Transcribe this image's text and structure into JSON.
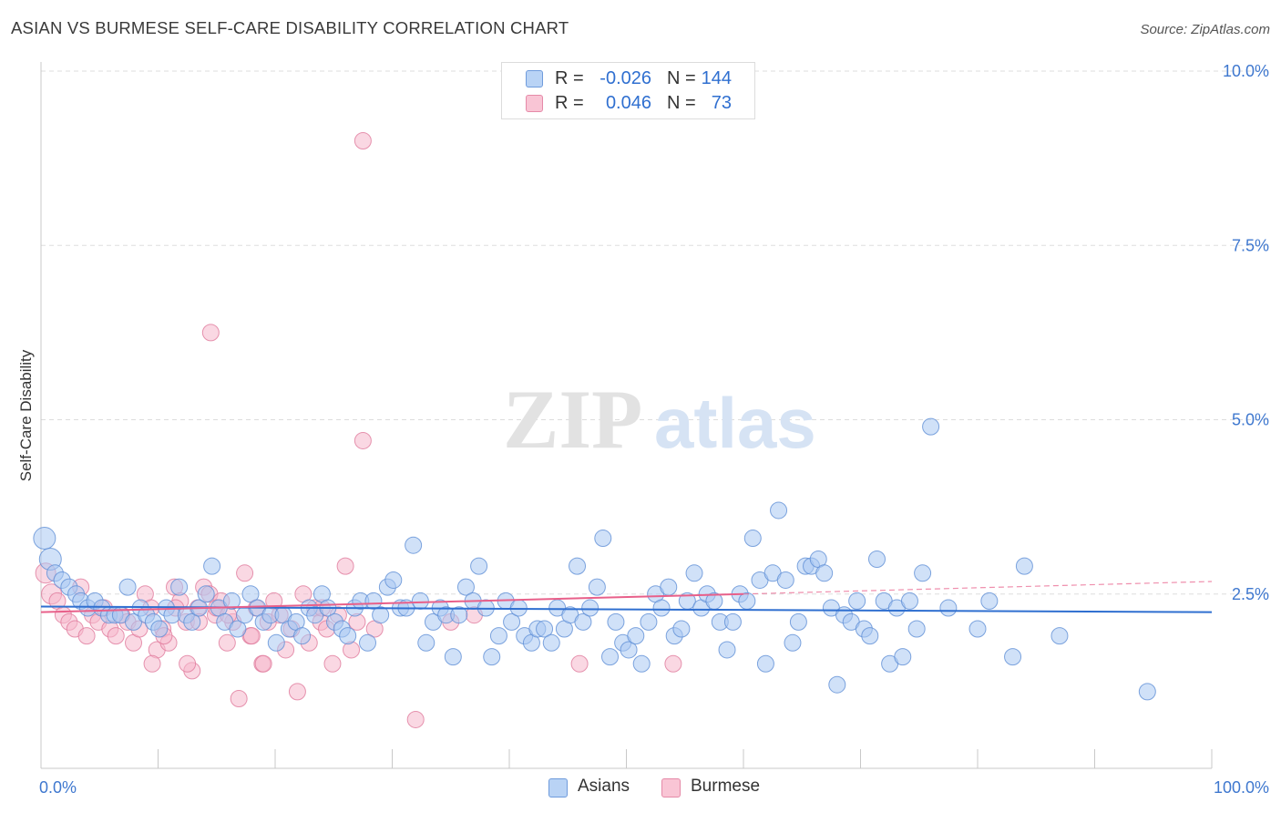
{
  "title": "ASIAN VS BURMESE SELF-CARE DISABILITY CORRELATION CHART",
  "source": "Source: ZipAtlas.com",
  "watermark": {
    "zip": "ZIP",
    "atlas": "atlas"
  },
  "colors": {
    "asian_fill": "#a9c8f2",
    "asian_stroke": "#5f8fd6",
    "asian_line": "#2f6fd0",
    "burmese_fill": "#f6b8cc",
    "burmese_stroke": "#e07a9c",
    "burmese_line": "#e8608a",
    "tick_label": "#3f78cf",
    "grid": "#dddddd"
  },
  "legend": {
    "rows": [
      {
        "r_label": "R =",
        "r_value": "-0.026",
        "n_label": "N =",
        "n_value": "144"
      },
      {
        "r_label": "R =",
        "r_value": "0.046",
        "n_label": "N =",
        "n_value": "73"
      }
    ]
  },
  "bottom_legend": {
    "asians": "Asians",
    "burmese": "Burmese"
  },
  "chart_data": {
    "type": "scatter",
    "title": "ASIAN VS BURMESE SELF-CARE DISABILITY CORRELATION CHART",
    "ylabel": "Self-Care Disability",
    "xlabel": "",
    "x_tick_labels": [
      "0.0%",
      "100.0%"
    ],
    "y_tick_labels": [
      "2.5%",
      "5.0%",
      "7.5%",
      "10.0%"
    ],
    "y_ticks": [
      2.5,
      5.0,
      7.5,
      10.0
    ],
    "xlim": [
      0,
      100
    ],
    "ylim": [
      0,
      10.2
    ],
    "grid": true,
    "series": [
      {
        "name": "Asians",
        "r": -0.026,
        "n": 144,
        "trend": {
          "x": [
            0,
            100
          ],
          "y": [
            2.32,
            2.24
          ]
        },
        "points": [
          [
            0.3,
            3.3
          ],
          [
            0.8,
            3.0
          ],
          [
            1.2,
            2.8
          ],
          [
            1.8,
            2.7
          ],
          [
            2.4,
            2.6
          ],
          [
            3.0,
            2.5
          ],
          [
            3.4,
            2.4
          ],
          [
            4.0,
            2.3
          ],
          [
            4.6,
            2.4
          ],
          [
            5.2,
            2.3
          ],
          [
            5.8,
            2.2
          ],
          [
            6.3,
            2.2
          ],
          [
            6.8,
            2.2
          ],
          [
            7.4,
            2.6
          ],
          [
            7.9,
            2.1
          ],
          [
            8.5,
            2.3
          ],
          [
            9.0,
            2.2
          ],
          [
            9.6,
            2.1
          ],
          [
            10.1,
            2.0
          ],
          [
            10.7,
            2.3
          ],
          [
            11.2,
            2.2
          ],
          [
            11.8,
            2.6
          ],
          [
            12.4,
            2.2
          ],
          [
            12.9,
            2.1
          ],
          [
            13.5,
            2.3
          ],
          [
            14.1,
            2.5
          ],
          [
            14.6,
            2.9
          ],
          [
            15.2,
            2.3
          ],
          [
            15.7,
            2.1
          ],
          [
            16.3,
            2.4
          ],
          [
            16.8,
            2.0
          ],
          [
            17.4,
            2.2
          ],
          [
            17.9,
            2.5
          ],
          [
            18.5,
            2.3
          ],
          [
            19.0,
            2.1
          ],
          [
            19.6,
            2.2
          ],
          [
            20.1,
            1.8
          ],
          [
            20.7,
            2.2
          ],
          [
            21.2,
            2.0
          ],
          [
            21.8,
            2.1
          ],
          [
            22.3,
            1.9
          ],
          [
            22.9,
            2.3
          ],
          [
            23.4,
            2.2
          ],
          [
            24.0,
            2.5
          ],
          [
            24.5,
            2.3
          ],
          [
            25.1,
            2.1
          ],
          [
            25.7,
            2.0
          ],
          [
            26.2,
            1.9
          ],
          [
            26.8,
            2.3
          ],
          [
            27.3,
            2.4
          ],
          [
            27.9,
            1.8
          ],
          [
            28.4,
            2.4
          ],
          [
            29.0,
            2.2
          ],
          [
            29.6,
            2.6
          ],
          [
            30.1,
            2.7
          ],
          [
            30.7,
            2.3
          ],
          [
            31.2,
            2.3
          ],
          [
            31.8,
            3.2
          ],
          [
            32.4,
            2.4
          ],
          [
            32.9,
            1.8
          ],
          [
            33.5,
            2.1
          ],
          [
            34.1,
            2.3
          ],
          [
            34.6,
            2.2
          ],
          [
            35.2,
            1.6
          ],
          [
            35.7,
            2.2
          ],
          [
            36.3,
            2.6
          ],
          [
            36.9,
            2.4
          ],
          [
            37.4,
            2.9
          ],
          [
            38.0,
            2.3
          ],
          [
            38.5,
            1.6
          ],
          [
            39.1,
            1.9
          ],
          [
            39.7,
            2.4
          ],
          [
            40.2,
            2.1
          ],
          [
            40.8,
            2.3
          ],
          [
            41.3,
            1.9
          ],
          [
            41.9,
            1.8
          ],
          [
            42.4,
            2.0
          ],
          [
            43.0,
            2.0
          ],
          [
            43.6,
            1.8
          ],
          [
            44.1,
            2.3
          ],
          [
            44.7,
            2.0
          ],
          [
            45.2,
            2.2
          ],
          [
            45.8,
            2.9
          ],
          [
            46.3,
            2.1
          ],
          [
            46.9,
            2.3
          ],
          [
            47.5,
            2.6
          ],
          [
            48.0,
            3.3
          ],
          [
            48.6,
            1.6
          ],
          [
            49.1,
            2.1
          ],
          [
            49.7,
            1.8
          ],
          [
            50.2,
            1.7
          ],
          [
            50.8,
            1.9
          ],
          [
            51.3,
            1.5
          ],
          [
            51.9,
            2.1
          ],
          [
            52.5,
            2.5
          ],
          [
            53.0,
            2.3
          ],
          [
            53.6,
            2.6
          ],
          [
            54.1,
            1.9
          ],
          [
            54.7,
            2.0
          ],
          [
            55.2,
            2.4
          ],
          [
            55.8,
            2.8
          ],
          [
            56.4,
            2.3
          ],
          [
            56.9,
            2.5
          ],
          [
            57.5,
            2.4
          ],
          [
            58.0,
            2.1
          ],
          [
            58.6,
            1.7
          ],
          [
            59.1,
            2.1
          ],
          [
            59.7,
            2.5
          ],
          [
            60.3,
            2.4
          ],
          [
            60.8,
            3.3
          ],
          [
            61.4,
            2.7
          ],
          [
            61.9,
            1.5
          ],
          [
            62.5,
            2.8
          ],
          [
            63.0,
            3.7
          ],
          [
            63.6,
            2.7
          ],
          [
            64.2,
            1.8
          ],
          [
            64.7,
            2.1
          ],
          [
            65.3,
            2.9
          ],
          [
            65.8,
            2.9
          ],
          [
            66.4,
            3.0
          ],
          [
            66.9,
            2.8
          ],
          [
            67.5,
            2.3
          ],
          [
            68.0,
            1.2
          ],
          [
            68.6,
            2.2
          ],
          [
            69.2,
            2.1
          ],
          [
            69.7,
            2.4
          ],
          [
            70.3,
            2.0
          ],
          [
            70.8,
            1.9
          ],
          [
            71.4,
            3.0
          ],
          [
            72.0,
            2.4
          ],
          [
            72.5,
            1.5
          ],
          [
            73.1,
            2.3
          ],
          [
            73.6,
            1.6
          ],
          [
            74.2,
            2.4
          ],
          [
            74.8,
            2.0
          ],
          [
            75.3,
            2.8
          ],
          [
            76.0,
            4.9
          ],
          [
            77.5,
            2.3
          ],
          [
            80.0,
            2.0
          ],
          [
            81.0,
            2.4
          ],
          [
            83.0,
            1.6
          ],
          [
            84.0,
            2.9
          ],
          [
            87.0,
            1.9
          ],
          [
            94.5,
            1.1
          ]
        ]
      },
      {
        "name": "Burmese",
        "r": 0.046,
        "n": 73,
        "trend": {
          "x": [
            0,
            60
          ],
          "y": [
            2.24,
            2.5
          ]
        },
        "trend_extension": {
          "x": [
            60,
            100
          ],
          "y": [
            2.5,
            2.68
          ]
        },
        "points": [
          [
            0.4,
            2.8
          ],
          [
            0.9,
            2.5
          ],
          [
            1.4,
            2.4
          ],
          [
            1.9,
            2.2
          ],
          [
            2.4,
            2.1
          ],
          [
            2.9,
            2.0
          ],
          [
            3.4,
            2.6
          ],
          [
            3.9,
            1.9
          ],
          [
            4.4,
            2.2
          ],
          [
            4.9,
            2.1
          ],
          [
            5.4,
            2.3
          ],
          [
            5.9,
            2.0
          ],
          [
            6.4,
            1.9
          ],
          [
            6.9,
            2.2
          ],
          [
            7.4,
            2.1
          ],
          [
            7.9,
            1.8
          ],
          [
            8.4,
            2.0
          ],
          [
            8.9,
            2.5
          ],
          [
            9.4,
            2.3
          ],
          [
            9.9,
            1.7
          ],
          [
            10.4,
            2.0
          ],
          [
            10.9,
            1.8
          ],
          [
            11.4,
            2.6
          ],
          [
            11.9,
            2.4
          ],
          [
            12.4,
            2.1
          ],
          [
            12.9,
            1.4
          ],
          [
            13.4,
            2.3
          ],
          [
            13.9,
            2.6
          ],
          [
            14.4,
            2.5
          ],
          [
            14.9,
            2.2
          ],
          [
            15.4,
            2.4
          ],
          [
            15.9,
            1.8
          ],
          [
            16.4,
            2.1
          ],
          [
            16.9,
            1.0
          ],
          [
            17.4,
            2.8
          ],
          [
            17.9,
            1.9
          ],
          [
            18.4,
            2.3
          ],
          [
            18.9,
            1.5
          ],
          [
            19.4,
            2.1
          ],
          [
            19.9,
            2.4
          ],
          [
            20.4,
            2.2
          ],
          [
            20.9,
            1.7
          ],
          [
            21.4,
            2.0
          ],
          [
            21.9,
            1.1
          ],
          [
            22.4,
            2.5
          ],
          [
            22.9,
            1.8
          ],
          [
            23.4,
            2.3
          ],
          [
            23.9,
            2.1
          ],
          [
            24.4,
            2.0
          ],
          [
            24.9,
            1.5
          ],
          [
            25.4,
            2.2
          ],
          [
            26.0,
            2.9
          ],
          [
            26.5,
            1.7
          ],
          [
            27.0,
            2.1
          ],
          [
            27.5,
            4.7
          ],
          [
            28.5,
            2.0
          ],
          [
            9.5,
            1.5
          ],
          [
            10.5,
            1.9
          ],
          [
            11.5,
            2.3
          ],
          [
            12.5,
            1.5
          ],
          [
            13.5,
            2.1
          ],
          [
            14.5,
            6.25
          ],
          [
            15.0,
            2.3
          ],
          [
            16.0,
            2.2
          ],
          [
            18.0,
            1.9
          ],
          [
            19.0,
            1.5
          ],
          [
            24.0,
            2.3
          ],
          [
            27.5,
            9.0
          ],
          [
            32.0,
            0.7
          ],
          [
            35.0,
            2.1
          ],
          [
            37.0,
            2.2
          ],
          [
            46.0,
            1.5
          ],
          [
            54.0,
            1.5
          ]
        ]
      }
    ]
  }
}
